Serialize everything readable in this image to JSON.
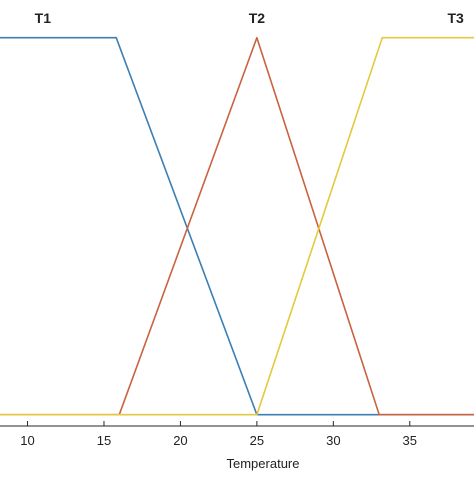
{
  "chart_data": {
    "type": "line",
    "title": "",
    "xlabel": "Temperature",
    "ylabel": "",
    "xlim": [
      8.2,
      39.2
    ],
    "ylim": [
      -0.03,
      1.1
    ],
    "xticks": [
      10,
      15,
      20,
      25,
      30,
      35
    ],
    "xtick_labels": [
      "10",
      "15",
      "20",
      "25",
      "30",
      "35"
    ],
    "grid": false,
    "legend": "none",
    "series": [
      {
        "name": "T1",
        "color": "#3c7fb4",
        "x": [
          8.2,
          15.8,
          25,
          39.2
        ],
        "y": [
          1,
          1,
          0,
          0
        ]
      },
      {
        "name": "T2",
        "color": "#c9633f",
        "x": [
          8.2,
          16,
          25,
          33,
          39.2
        ],
        "y": [
          0,
          0,
          1,
          0,
          0
        ]
      },
      {
        "name": "T3",
        "color": "#e6c840",
        "x": [
          8.2,
          25,
          33.2,
          39.2
        ],
        "y": [
          0,
          0,
          1,
          1
        ]
      }
    ],
    "annotations": [
      {
        "text": "T1",
        "x": 11,
        "y": 1.055
      },
      {
        "text": "T2",
        "x": 25,
        "y": 1.055
      },
      {
        "text": "T3",
        "x": 38,
        "y": 1.055
      }
    ]
  }
}
